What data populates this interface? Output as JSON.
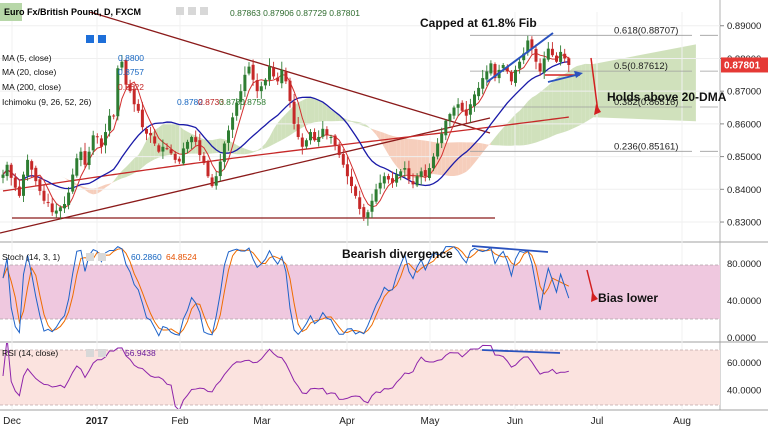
{
  "header": {
    "symbol": "Euro Fx/British Pound, D, FXCM",
    "ohlc": "0.87863  0.87906  0.87729  0.87801"
  },
  "indicators": {
    "ma5": "MA (5, close)",
    "ma5_value": "0.8800",
    "ma20": "MA (20, close)",
    "ma20_value": "0.8757",
    "ma200": "MA (200, close)",
    "ma200_value": "0.8622",
    "ichimoku": "Ichimoku (9, 26, 52, 26)",
    "ichimoku_values": [
      "0.8782",
      "0.8733",
      "0.8780",
      "0.8758"
    ],
    "stoch": "Stoch (14, 3, 1)",
    "stoch_values": [
      "60.2860",
      "64.8524"
    ],
    "rsi": "RSI (14, close)",
    "rsi_value": "56.9438"
  },
  "annotations": {
    "capped": "Capped at 61.8% Fib",
    "holds": "Holds above 20-DMA",
    "bearish_div": "Bearish divergence",
    "bias": "Bias lower"
  },
  "price_badge": "0.87801",
  "colors": {
    "up": "#2e7d32",
    "down": "#c62828",
    "ma5": "#d32f2f",
    "ma20": "#1a1aa8",
    "ma200": "#c62828",
    "cloud_bull": "#c8dcb0",
    "cloud_bear": "#f4c6b0",
    "stoch_band": "#efc8df",
    "rsi_band": "#fbe3df",
    "trend": "#8b1a1a",
    "annot_blue": "#2a52be",
    "annot_red": "#d22020",
    "badge": "#e53935"
  },
  "chart_data": [
    {
      "type": "candlestick",
      "title": "Euro Fx/British Pound, D, FXCM",
      "x_ticks": [
        "Dec",
        "2017",
        "Feb",
        "Mar",
        "Apr",
        "May",
        "Jun",
        "Jul",
        "Aug"
      ],
      "y_ticks": [
        "0.89000",
        "0.88000",
        "0.87000",
        "0.86000",
        "0.85000",
        "0.84000",
        "0.83000"
      ],
      "ylim": [
        0.8242,
        0.8942
      ],
      "candles_close": [
        0.8445,
        0.8475,
        0.8435,
        0.8405,
        0.838,
        0.8445,
        0.849,
        0.846,
        0.8425,
        0.8395,
        0.8365,
        0.836,
        0.833,
        0.8335,
        0.8345,
        0.8355,
        0.839,
        0.8445,
        0.8495,
        0.8515,
        0.8475,
        0.8515,
        0.8565,
        0.856,
        0.853,
        0.8575,
        0.8625,
        0.8625,
        0.877,
        0.879,
        0.872,
        0.87,
        0.866,
        0.864,
        0.859,
        0.857,
        0.8565,
        0.854,
        0.8515,
        0.853,
        0.8525,
        0.851,
        0.849,
        0.8485,
        0.8525,
        0.8545,
        0.856,
        0.8545,
        0.8505,
        0.848,
        0.844,
        0.841,
        0.844,
        0.8485,
        0.854,
        0.858,
        0.862,
        0.8665,
        0.87,
        0.875,
        0.8775,
        0.8735,
        0.87,
        0.8715,
        0.8735,
        0.8775,
        0.8745,
        0.873,
        0.8765,
        0.873,
        0.867,
        0.86,
        0.856,
        0.853,
        0.855,
        0.8575,
        0.855,
        0.856,
        0.8585,
        0.8565,
        0.856,
        0.8535,
        0.8505,
        0.8475,
        0.844,
        0.841,
        0.838,
        0.834,
        0.8315,
        0.833,
        0.8365,
        0.84,
        0.842,
        0.844,
        0.843,
        0.842,
        0.8445,
        0.8455,
        0.8465,
        0.843,
        0.8415,
        0.844,
        0.8455,
        0.844,
        0.8465,
        0.85,
        0.854,
        0.857,
        0.861,
        0.863,
        0.865,
        0.866,
        0.864,
        0.8625,
        0.866,
        0.869,
        0.871,
        0.874,
        0.876,
        0.8785,
        0.874,
        0.8765,
        0.878,
        0.876,
        0.873,
        0.8765,
        0.879,
        0.8815,
        0.8855,
        0.883,
        0.879,
        0.876,
        0.88,
        0.883,
        0.881,
        0.879,
        0.882,
        0.88,
        0.878
      ],
      "ma5_label": "MA (5, close)",
      "ma20_label": "MA (20, close)",
      "ma200_label": "MA (200, close)",
      "fib_levels": [
        {
          "label": "0.618(0.88707)",
          "value": 0.88707
        },
        {
          "label": "0.5(0.87612)",
          "value": 0.87612
        },
        {
          "label": "0.382(0.86516)",
          "value": 0.86516
        },
        {
          "label": "0.236(0.85161)",
          "value": 0.85161
        }
      ],
      "support_level": 0.8305,
      "last_price": 0.87801
    },
    {
      "type": "line",
      "title": "Stoch (14, 3, 1)",
      "y_ticks": [
        "80.0000",
        "40.0000",
        "0.0000"
      ],
      "ylim": [
        -4,
        102
      ],
      "band": [
        20,
        80
      ],
      "last_values": [
        60.286,
        64.8524
      ]
    },
    {
      "type": "line",
      "title": "RSI (14, close)",
      "y_ticks": [
        "60.0000",
        "40.0000"
      ],
      "ylim": [
        26,
        74
      ],
      "band": [
        30,
        70
      ],
      "last_value": 56.9438
    }
  ]
}
